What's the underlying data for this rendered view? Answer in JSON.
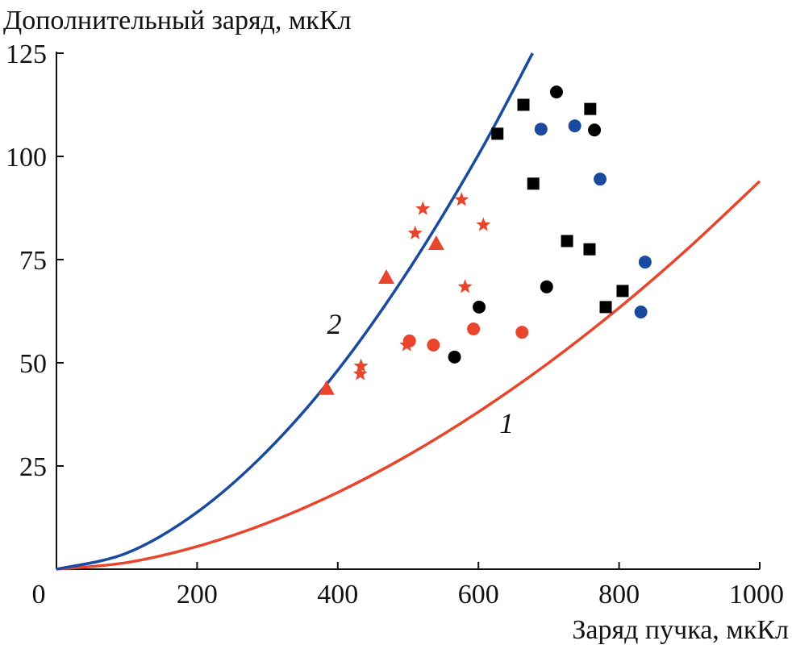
{
  "chart_data": {
    "type": "scatter",
    "title": "",
    "ylabel": "Дополнительный заряд, мкКл",
    "xlabel": "Заряд пучка, мкКл",
    "xlim": [
      0,
      1000
    ],
    "ylim": [
      0,
      125
    ],
    "x_ticks": [
      0,
      200,
      400,
      600,
      800,
      1000
    ],
    "x_tick_labels": [
      "0",
      "200",
      "400",
      "600",
      "800",
      "1000"
    ],
    "y_ticks": [
      25,
      50,
      75,
      100,
      125
    ],
    "y_tick_labels": [
      "25",
      "50",
      "75",
      "100",
      "125"
    ],
    "grid": false,
    "curves": [
      {
        "name": "1",
        "label": "1",
        "color": "#e8452c",
        "label_at": [
          640,
          33
        ],
        "x": [
          0,
          100,
          200,
          300,
          400,
          500,
          600,
          700,
          800,
          900,
          1000
        ],
        "y": [
          0,
          1.6,
          5.5,
          11.2,
          18.6,
          27.6,
          38.1,
          50,
          63.3,
          78,
          94
        ]
      },
      {
        "name": "2",
        "label": "2",
        "color": "#1a4aa0",
        "label_at": [
          395,
          57
        ],
        "x": [
          0,
          100,
          200,
          300,
          400,
          500,
          600,
          677
        ],
        "y": [
          0,
          3.9,
          13.8,
          28.7,
          48.2,
          72.3,
          100.4,
          125
        ]
      }
    ],
    "series": [
      {
        "name": "black-squares",
        "marker": "square",
        "color": "#000000",
        "points": [
          [
            627,
            105.5
          ],
          [
            664,
            112.5
          ],
          [
            678,
            93.4
          ],
          [
            726,
            79.5
          ],
          [
            758,
            77.5
          ],
          [
            759,
            111.5
          ],
          [
            805,
            67.4
          ],
          [
            781,
            63.5
          ]
        ]
      },
      {
        "name": "black-circles",
        "marker": "circle",
        "color": "#000000",
        "points": [
          [
            711,
            115.6
          ],
          [
            765,
            106.4
          ],
          [
            601,
            63.5
          ],
          [
            697,
            68.4
          ],
          [
            566,
            51.4
          ]
        ]
      },
      {
        "name": "blue-circles",
        "marker": "circle",
        "color": "#1a4aa0",
        "points": [
          [
            689,
            106.6
          ],
          [
            737,
            107.4
          ],
          [
            773,
            94.5
          ],
          [
            837,
            74.4
          ],
          [
            831,
            62.3
          ]
        ]
      },
      {
        "name": "red-circles",
        "marker": "circle",
        "color": "#e8452c",
        "points": [
          [
            502,
            55.3
          ],
          [
            536,
            54.3
          ],
          [
            593,
            58.2
          ],
          [
            662,
            57.4
          ]
        ]
      },
      {
        "name": "red-stars",
        "marker": "star",
        "color": "#e8452c",
        "points": [
          [
            521,
            87.3
          ],
          [
            576,
            89.5
          ],
          [
            510,
            81.4
          ],
          [
            607,
            83.4
          ],
          [
            581,
            68.4
          ],
          [
            433,
            49.2
          ],
          [
            432,
            47.3
          ],
          [
            498,
            54.3
          ]
        ]
      },
      {
        "name": "red-triangles",
        "marker": "triangle",
        "color": "#e8452c",
        "points": [
          [
            384,
            43.8
          ],
          [
            469,
            70.7
          ],
          [
            540,
            78.9
          ]
        ]
      }
    ]
  }
}
